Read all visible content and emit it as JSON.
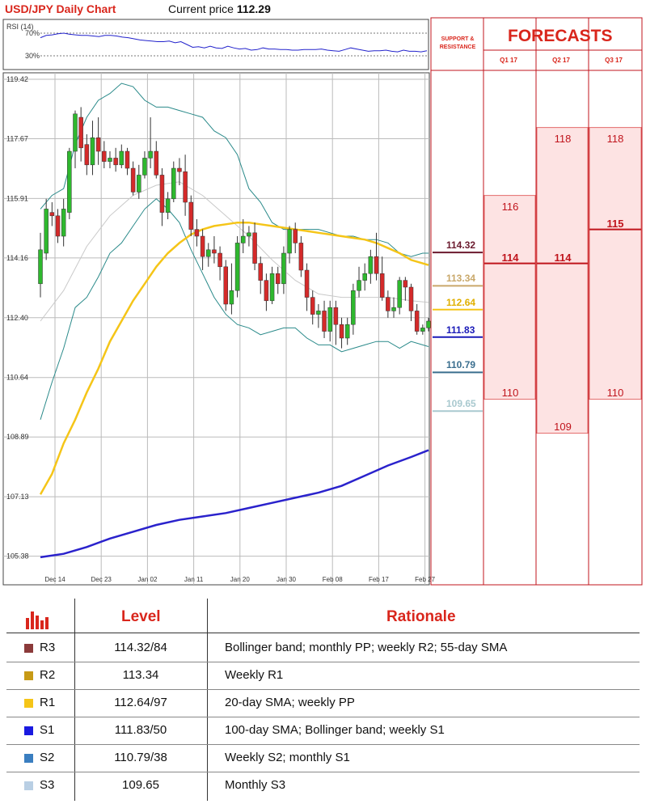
{
  "header": {
    "title": "USD/JPY Daily Chart",
    "price_label": "Current price",
    "price_value": "112.29"
  },
  "rsi": {
    "label": "RSI (14)",
    "levels": [
      "70%",
      "30%"
    ],
    "values": [
      62,
      66,
      67,
      69,
      70,
      68,
      67,
      66,
      66,
      65,
      64,
      66,
      66,
      65,
      63,
      62,
      60,
      58,
      57,
      56,
      55,
      55,
      56,
      53,
      55,
      50,
      45,
      46,
      44,
      47,
      44,
      43,
      47,
      44,
      42,
      43,
      40,
      41,
      44,
      42,
      42,
      41,
      41,
      40,
      40,
      41,
      41,
      41,
      42,
      40,
      39,
      38,
      41,
      44,
      42,
      40,
      38,
      39,
      39,
      40,
      38,
      37,
      40,
      38,
      38,
      37,
      39
    ]
  },
  "chart_data": {
    "type": "candlestick",
    "title": "USD/JPY Daily Chart",
    "y_ticks": [
      "119.42",
      "117.67",
      "115.91",
      "114.16",
      "112.40",
      "110.64",
      "108.89",
      "107.13",
      "105.38"
    ],
    "ylim": [
      104.6,
      119.42
    ],
    "x_ticks": [
      "Dec 14",
      "Dec 23",
      "Jan 02",
      "Jan 11",
      "Jan 20",
      "Jan 30",
      "Feb 08",
      "Feb 17",
      "Feb 27"
    ],
    "candles": [
      {
        "o": 113.4,
        "c": 114.4,
        "h": 114.9,
        "l": 113.0
      },
      {
        "o": 114.3,
        "c": 115.6,
        "h": 115.9,
        "l": 114.1
      },
      {
        "o": 115.5,
        "c": 115.4,
        "h": 115.8,
        "l": 115.1
      },
      {
        "o": 115.4,
        "c": 114.8,
        "h": 115.6,
        "l": 114.6
      },
      {
        "o": 114.8,
        "c": 115.6,
        "h": 115.9,
        "l": 114.5
      },
      {
        "o": 115.5,
        "c": 117.3,
        "h": 117.4,
        "l": 115.3
      },
      {
        "o": 117.3,
        "c": 118.4,
        "h": 118.5,
        "l": 116.8
      },
      {
        "o": 118.3,
        "c": 117.4,
        "h": 118.6,
        "l": 117.0
      },
      {
        "o": 117.5,
        "c": 116.9,
        "h": 117.8,
        "l": 116.6
      },
      {
        "o": 116.9,
        "c": 117.7,
        "h": 118.2,
        "l": 116.6
      },
      {
        "o": 117.7,
        "c": 117.3,
        "h": 118.3,
        "l": 116.9
      },
      {
        "o": 117.3,
        "c": 117.0,
        "h": 117.6,
        "l": 116.8
      },
      {
        "o": 117.0,
        "c": 117.1,
        "h": 117.3,
        "l": 116.8
      },
      {
        "o": 117.1,
        "c": 116.9,
        "h": 117.4,
        "l": 116.7
      },
      {
        "o": 116.9,
        "c": 117.3,
        "h": 117.5,
        "l": 116.8
      },
      {
        "o": 117.3,
        "c": 116.8,
        "h": 117.4,
        "l": 116.6
      },
      {
        "o": 116.8,
        "c": 116.1,
        "h": 117.0,
        "l": 116.0
      },
      {
        "o": 116.1,
        "c": 116.6,
        "h": 116.9,
        "l": 115.9
      },
      {
        "o": 116.6,
        "c": 117.1,
        "h": 117.3,
        "l": 116.5
      },
      {
        "o": 117.1,
        "c": 117.3,
        "h": 118.3,
        "l": 116.8
      },
      {
        "o": 117.3,
        "c": 116.6,
        "h": 117.6,
        "l": 116.5
      },
      {
        "o": 116.6,
        "c": 115.5,
        "h": 116.8,
        "l": 115.1
      },
      {
        "o": 115.5,
        "c": 115.9,
        "h": 116.1,
        "l": 115.3
      },
      {
        "o": 115.9,
        "c": 116.8,
        "h": 117.0,
        "l": 115.8
      },
      {
        "o": 116.8,
        "c": 116.7,
        "h": 117.1,
        "l": 116.3
      },
      {
        "o": 116.7,
        "c": 115.8,
        "h": 117.2,
        "l": 115.4
      },
      {
        "o": 115.8,
        "c": 115.0,
        "h": 116.0,
        "l": 114.8
      },
      {
        "o": 115.0,
        "c": 114.8,
        "h": 115.3,
        "l": 114.5
      },
      {
        "o": 114.8,
        "c": 114.2,
        "h": 115.0,
        "l": 113.8
      },
      {
        "o": 114.2,
        "c": 114.4,
        "h": 114.6,
        "l": 113.9
      },
      {
        "o": 114.4,
        "c": 114.3,
        "h": 114.8,
        "l": 114.0
      },
      {
        "o": 114.3,
        "c": 113.9,
        "h": 114.5,
        "l": 113.5
      },
      {
        "o": 113.9,
        "c": 112.8,
        "h": 114.1,
        "l": 112.6
      },
      {
        "o": 112.8,
        "c": 113.2,
        "h": 114.0,
        "l": 112.5
      },
      {
        "o": 113.2,
        "c": 114.6,
        "h": 114.8,
        "l": 113.0
      },
      {
        "o": 114.6,
        "c": 114.8,
        "h": 115.3,
        "l": 114.3
      },
      {
        "o": 114.8,
        "c": 114.9,
        "h": 115.1,
        "l": 114.5
      },
      {
        "o": 114.9,
        "c": 114.0,
        "h": 115.2,
        "l": 113.8
      },
      {
        "o": 114.0,
        "c": 113.5,
        "h": 114.2,
        "l": 113.1
      },
      {
        "o": 113.5,
        "c": 112.9,
        "h": 113.7,
        "l": 112.6
      },
      {
        "o": 112.9,
        "c": 113.7,
        "h": 113.9,
        "l": 112.8
      },
      {
        "o": 113.7,
        "c": 113.4,
        "h": 113.9,
        "l": 113.1
      },
      {
        "o": 113.4,
        "c": 114.3,
        "h": 114.5,
        "l": 113.1
      },
      {
        "o": 114.3,
        "c": 115.0,
        "h": 115.1,
        "l": 114.0
      },
      {
        "o": 115.0,
        "c": 114.6,
        "h": 115.2,
        "l": 114.3
      },
      {
        "o": 114.6,
        "c": 113.8,
        "h": 114.8,
        "l": 113.6
      },
      {
        "o": 113.8,
        "c": 113.0,
        "h": 114.0,
        "l": 112.6
      },
      {
        "o": 113.0,
        "c": 112.5,
        "h": 113.2,
        "l": 112.2
      },
      {
        "o": 112.5,
        "c": 112.6,
        "h": 112.8,
        "l": 112.1
      },
      {
        "o": 112.6,
        "c": 112.0,
        "h": 112.9,
        "l": 111.8
      },
      {
        "o": 112.0,
        "c": 112.7,
        "h": 112.9,
        "l": 111.7
      },
      {
        "o": 112.7,
        "c": 112.2,
        "h": 112.9,
        "l": 111.6
      },
      {
        "o": 112.2,
        "c": 111.8,
        "h": 112.4,
        "l": 111.5
      },
      {
        "o": 111.8,
        "c": 112.2,
        "h": 112.4,
        "l": 111.6
      },
      {
        "o": 112.2,
        "c": 113.2,
        "h": 113.4,
        "l": 111.9
      },
      {
        "o": 113.2,
        "c": 113.5,
        "h": 113.9,
        "l": 113.0
      },
      {
        "o": 113.5,
        "c": 113.7,
        "h": 114.0,
        "l": 113.2
      },
      {
        "o": 113.7,
        "c": 114.2,
        "h": 114.4,
        "l": 113.4
      },
      {
        "o": 114.2,
        "c": 113.7,
        "h": 114.9,
        "l": 113.5
      },
      {
        "o": 113.7,
        "c": 113.0,
        "h": 114.2,
        "l": 112.9
      },
      {
        "o": 113.0,
        "c": 112.6,
        "h": 113.2,
        "l": 112.4
      },
      {
        "o": 112.6,
        "c": 112.7,
        "h": 113.0,
        "l": 112.4
      },
      {
        "o": 112.7,
        "c": 113.5,
        "h": 113.6,
        "l": 112.5
      },
      {
        "o": 113.5,
        "c": 113.3,
        "h": 113.6,
        "l": 112.9
      },
      {
        "o": 113.3,
        "c": 112.6,
        "h": 113.4,
        "l": 112.3
      },
      {
        "o": 112.6,
        "c": 112.0,
        "h": 112.8,
        "l": 111.9
      },
      {
        "o": 112.0,
        "c": 112.1,
        "h": 112.2,
        "l": 111.9
      },
      {
        "o": 112.1,
        "c": 112.3,
        "h": 112.4,
        "l": 112.0
      }
    ],
    "series": [
      {
        "key": "sma20",
        "color": "#c9c9c9",
        "points": [
          [
            0,
            112.3
          ],
          [
            4,
            113.2
          ],
          [
            8,
            114.5
          ],
          [
            12,
            115.4
          ],
          [
            16,
            116.0
          ],
          [
            20,
            116.3
          ],
          [
            24,
            116.4
          ],
          [
            28,
            116.0
          ],
          [
            32,
            115.4
          ],
          [
            36,
            114.8
          ],
          [
            40,
            114.1
          ],
          [
            44,
            113.5
          ],
          [
            48,
            113.1
          ],
          [
            52,
            113.0
          ],
          [
            56,
            113.0
          ],
          [
            60,
            113.0
          ],
          [
            64,
            112.9
          ],
          [
            67,
            112.85
          ]
        ]
      },
      {
        "key": "bb_upper",
        "color": "#2a8a8a",
        "points": [
          [
            0,
            115.6
          ],
          [
            2,
            116.0
          ],
          [
            4,
            116.2
          ],
          [
            6,
            117.5
          ],
          [
            8,
            118.3
          ],
          [
            10,
            118.8
          ],
          [
            12,
            119.0
          ],
          [
            14,
            119.3
          ],
          [
            16,
            119.2
          ],
          [
            18,
            118.8
          ],
          [
            20,
            118.6
          ],
          [
            22,
            118.6
          ],
          [
            24,
            118.5
          ],
          [
            26,
            118.4
          ],
          [
            28,
            118.3
          ],
          [
            30,
            117.9
          ],
          [
            32,
            117.7
          ],
          [
            34,
            117.2
          ],
          [
            36,
            116.2
          ],
          [
            38,
            115.8
          ],
          [
            40,
            115.2
          ],
          [
            42,
            115.0
          ],
          [
            44,
            115.0
          ],
          [
            46,
            115.0
          ],
          [
            48,
            115.0
          ],
          [
            50,
            114.9
          ],
          [
            52,
            114.8
          ],
          [
            54,
            114.8
          ],
          [
            56,
            114.7
          ],
          [
            58,
            114.7
          ],
          [
            60,
            114.6
          ],
          [
            62,
            114.3
          ],
          [
            64,
            114.2
          ],
          [
            66,
            114.3
          ],
          [
            67,
            114.3
          ]
        ]
      },
      {
        "key": "bb_lower",
        "color": "#2a8a8a",
        "points": [
          [
            0,
            109.4
          ],
          [
            2,
            110.5
          ],
          [
            4,
            111.5
          ],
          [
            6,
            112.7
          ],
          [
            8,
            113.0
          ],
          [
            10,
            113.6
          ],
          [
            12,
            114.3
          ],
          [
            14,
            114.6
          ],
          [
            16,
            115.1
          ],
          [
            18,
            115.6
          ],
          [
            20,
            115.9
          ],
          [
            22,
            115.6
          ],
          [
            24,
            115.2
          ],
          [
            26,
            114.4
          ],
          [
            28,
            113.7
          ],
          [
            30,
            113.0
          ],
          [
            32,
            112.5
          ],
          [
            34,
            112.2
          ],
          [
            36,
            112.1
          ],
          [
            38,
            111.9
          ],
          [
            40,
            112.0
          ],
          [
            42,
            112.1
          ],
          [
            44,
            112.1
          ],
          [
            46,
            111.8
          ],
          [
            48,
            111.6
          ],
          [
            50,
            111.6
          ],
          [
            52,
            111.4
          ],
          [
            54,
            111.5
          ],
          [
            56,
            111.6
          ],
          [
            58,
            111.7
          ],
          [
            60,
            111.7
          ],
          [
            62,
            111.5
          ],
          [
            64,
            111.7
          ],
          [
            66,
            111.6
          ],
          [
            67,
            111.55
          ]
        ]
      },
      {
        "key": "sma55",
        "color": "#f5c518",
        "points": [
          [
            0,
            107.2
          ],
          [
            2,
            107.8
          ],
          [
            4,
            108.7
          ],
          [
            6,
            109.4
          ],
          [
            8,
            110.2
          ],
          [
            10,
            110.9
          ],
          [
            12,
            111.7
          ],
          [
            14,
            112.3
          ],
          [
            16,
            112.9
          ],
          [
            18,
            113.4
          ],
          [
            20,
            113.9
          ],
          [
            22,
            114.3
          ],
          [
            24,
            114.6
          ],
          [
            26,
            114.85
          ],
          [
            28,
            115.0
          ],
          [
            30,
            115.1
          ],
          [
            32,
            115.15
          ],
          [
            34,
            115.2
          ],
          [
            36,
            115.2
          ],
          [
            38,
            115.15
          ],
          [
            40,
            115.1
          ],
          [
            42,
            115.05
          ],
          [
            44,
            115.0
          ],
          [
            46,
            114.95
          ],
          [
            48,
            114.9
          ],
          [
            50,
            114.85
          ],
          [
            52,
            114.8
          ],
          [
            54,
            114.75
          ],
          [
            56,
            114.7
          ],
          [
            58,
            114.6
          ],
          [
            60,
            114.45
          ],
          [
            62,
            114.3
          ],
          [
            64,
            114.1
          ],
          [
            66,
            114.0
          ],
          [
            67,
            113.95
          ]
        ]
      },
      {
        "key": "sma100",
        "color": "#2a22cc",
        "points": [
          [
            0,
            105.35
          ],
          [
            4,
            105.45
          ],
          [
            8,
            105.65
          ],
          [
            12,
            105.9
          ],
          [
            16,
            106.1
          ],
          [
            20,
            106.3
          ],
          [
            24,
            106.45
          ],
          [
            28,
            106.55
          ],
          [
            32,
            106.65
          ],
          [
            36,
            106.8
          ],
          [
            40,
            106.95
          ],
          [
            44,
            107.1
          ],
          [
            48,
            107.25
          ],
          [
            52,
            107.45
          ],
          [
            56,
            107.75
          ],
          [
            60,
            108.05
          ],
          [
            64,
            108.3
          ],
          [
            67,
            108.5
          ]
        ]
      }
    ]
  },
  "support_resistance": {
    "title_line1": "SUPPORT &",
    "title_line2": "RESISTANCE",
    "levels": [
      {
        "value": "114.32",
        "price": 114.32,
        "color": "#6b1a2e"
      },
      {
        "value": "113.34",
        "price": 113.34,
        "color": "#c9a86a"
      },
      {
        "value": "112.64",
        "price": 112.64,
        "color": "#f5c518"
      },
      {
        "value": "111.83",
        "price": 111.83,
        "color": "#1a1ab8"
      },
      {
        "value": "110.79",
        "price": 110.79,
        "color": "#3a6e8e"
      },
      {
        "value": "109.65",
        "price": 109.65,
        "color": "#a9c9cf"
      }
    ]
  },
  "forecasts": {
    "title": "FORECASTS",
    "quarters": [
      {
        "label": "Q1 17",
        "high": "116",
        "high_v": 116,
        "mid": "114",
        "mid_v": 114,
        "low": "110",
        "low_v": 110
      },
      {
        "label": "Q2 17",
        "high": "118",
        "high_v": 118,
        "mid": "114",
        "mid_v": 114,
        "low": "109",
        "low_v": 109
      },
      {
        "label": "Q3 17",
        "high": "118",
        "high_v": 118,
        "mid": "115",
        "mid_v": 115,
        "low": "110",
        "low_v": 110
      }
    ]
  },
  "table": {
    "headers": {
      "level": "Level",
      "rationale": "Rationale"
    },
    "rows": [
      {
        "tag": "R3",
        "level": "114.32/84",
        "rationale": "Bollinger band; monthly PP; weekly R2; 55-day SMA",
        "color": "#8b3a3a"
      },
      {
        "tag": "R2",
        "level": "113.34",
        "rationale": "Weekly R1",
        "color": "#c79a16"
      },
      {
        "tag": "R1",
        "level": "112.64/97",
        "rationale": "20-day SMA; weekly PP",
        "color": "#f5c518"
      },
      {
        "tag": "S1",
        "level": "111.83/50",
        "rationale": "100-day SMA; Bollinger band; weekly S1",
        "color": "#1a1ae0"
      },
      {
        "tag": "S2",
        "level": "110.79/38",
        "rationale": "Weekly S2; monthly S1",
        "color": "#3a7ec0"
      },
      {
        "tag": "S3",
        "level": "109.65",
        "rationale": "Monthly S3",
        "color": "#b9cfe4"
      }
    ]
  }
}
